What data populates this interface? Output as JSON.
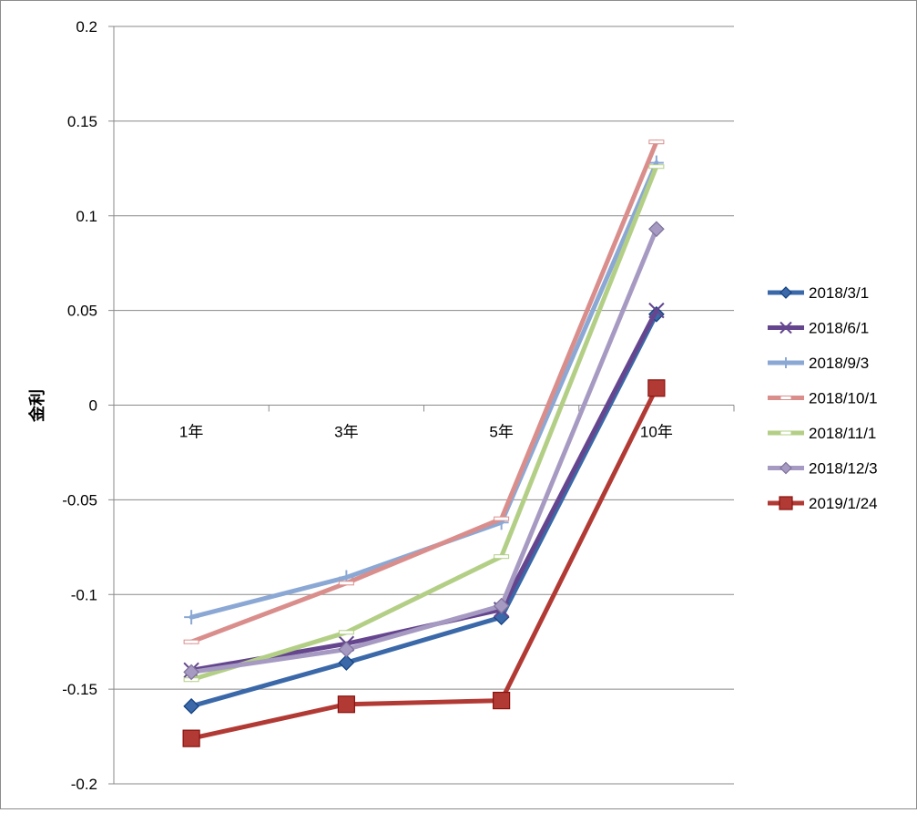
{
  "chart_data": {
    "type": "line",
    "title": "",
    "xlabel": "",
    "ylabel": "金利",
    "categories": [
      "1年",
      "3年",
      "5年",
      "10年"
    ],
    "ylim": [
      -0.2,
      0.2
    ],
    "yticks": [
      0.2,
      0.15,
      0.1,
      0.05,
      0,
      -0.05,
      -0.1,
      -0.15,
      -0.2
    ],
    "ytick_labels": [
      "0.2",
      "0.15",
      "0.1",
      "0.05",
      "0",
      "-0.05",
      "-0.1",
      "-0.15",
      "-0.2"
    ],
    "grid": true,
    "legend_position": "right",
    "series": [
      {
        "name": "2018/3/1",
        "values": [
          -0.159,
          -0.136,
          -0.112,
          0.048
        ],
        "color": "#3a68a8",
        "marker": "diamond"
      },
      {
        "name": "2018/6/1",
        "values": [
          -0.14,
          -0.126,
          -0.108,
          0.05
        ],
        "color": "#65468e",
        "marker": "x"
      },
      {
        "name": "2018/9/3",
        "values": [
          -0.112,
          -0.091,
          -0.062,
          0.128
        ],
        "color": "#8ba8d4",
        "marker": "plus"
      },
      {
        "name": "2018/10/1",
        "values": [
          -0.125,
          -0.094,
          -0.06,
          0.139
        ],
        "color": "#d98e8c",
        "marker": "dash"
      },
      {
        "name": "2018/11/1",
        "values": [
          -0.145,
          -0.12,
          -0.08,
          0.126
        ],
        "color": "#b3cf86",
        "marker": "dash"
      },
      {
        "name": "2018/12/3",
        "values": [
          -0.141,
          -0.129,
          -0.106,
          0.093
        ],
        "color": "#a69ac2",
        "marker": "diamond"
      },
      {
        "name": "2019/1/24",
        "values": [
          -0.176,
          -0.158,
          -0.156,
          0.009
        ],
        "color": "#b23a35",
        "marker": "square"
      }
    ]
  }
}
